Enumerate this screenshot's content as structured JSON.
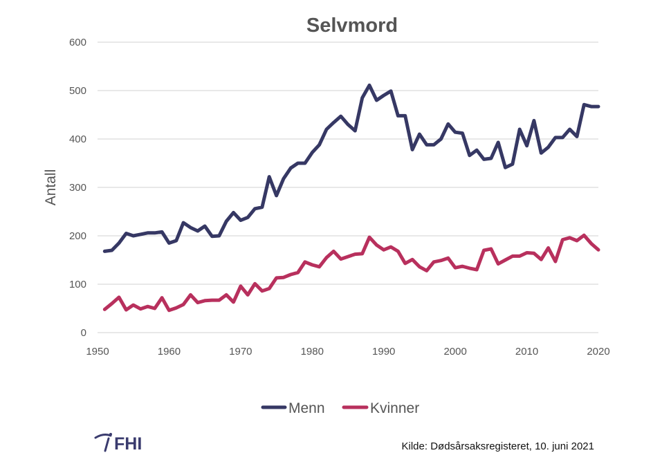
{
  "chart_data": {
    "type": "line",
    "title": "Selvmord",
    "xlabel": "",
    "ylabel": "Antall",
    "xlim": [
      1950,
      2020
    ],
    "ylim": [
      0,
      600
    ],
    "xticks": [
      1950,
      1960,
      1970,
      1980,
      1990,
      2000,
      2010,
      2020
    ],
    "yticks": [
      0,
      100,
      200,
      300,
      400,
      500,
      600
    ],
    "grid": true,
    "legend": "bottom",
    "x": [
      1951,
      1952,
      1953,
      1954,
      1955,
      1956,
      1957,
      1958,
      1959,
      1960,
      1961,
      1962,
      1963,
      1964,
      1965,
      1966,
      1967,
      1968,
      1969,
      1970,
      1971,
      1972,
      1973,
      1974,
      1975,
      1976,
      1977,
      1978,
      1979,
      1980,
      1981,
      1982,
      1983,
      1984,
      1985,
      1986,
      1987,
      1988,
      1989,
      1990,
      1991,
      1992,
      1993,
      1994,
      1995,
      1996,
      1997,
      1998,
      1999,
      2000,
      2001,
      2002,
      2003,
      2004,
      2005,
      2006,
      2007,
      2008,
      2009,
      2010,
      2011,
      2012,
      2013,
      2014,
      2015,
      2016,
      2017,
      2018,
      2019,
      2020
    ],
    "series": [
      {
        "name": "Menn",
        "color": "#363864",
        "values": [
          168,
          170,
          185,
          205,
          200,
          203,
          206,
          206,
          208,
          185,
          190,
          227,
          217,
          210,
          220,
          199,
          200,
          230,
          248,
          232,
          238,
          256,
          259,
          322,
          283,
          318,
          340,
          350,
          350,
          372,
          388,
          420,
          434,
          447,
          430,
          417,
          485,
          511,
          480,
          490,
          499,
          448,
          448,
          378,
          410,
          388,
          388,
          400,
          431,
          414,
          412,
          366,
          377,
          358,
          360,
          393,
          341,
          348,
          420,
          386,
          438,
          371,
          383,
          403,
          403,
          420,
          405,
          471,
          467,
          467
        ]
      },
      {
        "name": "Kvinner",
        "color": "#b8305d",
        "values": [
          48,
          60,
          73,
          47,
          57,
          49,
          54,
          50,
          72,
          46,
          51,
          58,
          78,
          62,
          66,
          67,
          67,
          78,
          63,
          96,
          78,
          101,
          86,
          91,
          113,
          114,
          120,
          124,
          146,
          140,
          136,
          155,
          168,
          152,
          157,
          162,
          163,
          197,
          181,
          171,
          177,
          168,
          143,
          151,
          136,
          128,
          146,
          149,
          154,
          134,
          137,
          133,
          130,
          170,
          173,
          142,
          150,
          158,
          158,
          165,
          164,
          151,
          175,
          147,
          192,
          196,
          190,
          201,
          184,
          171
        ]
      }
    ]
  },
  "legend": {
    "menn": "Menn",
    "kvinner": "Kvinner"
  },
  "logo": {
    "text": "FHI"
  },
  "source_text": "Kilde: Dødsårsaksregisteret, 10. juni 2021",
  "colors": {
    "grid": "#d9d9d9",
    "axis": "#d9d9d9",
    "text": "#555555",
    "logo": "#3a3b6e"
  }
}
